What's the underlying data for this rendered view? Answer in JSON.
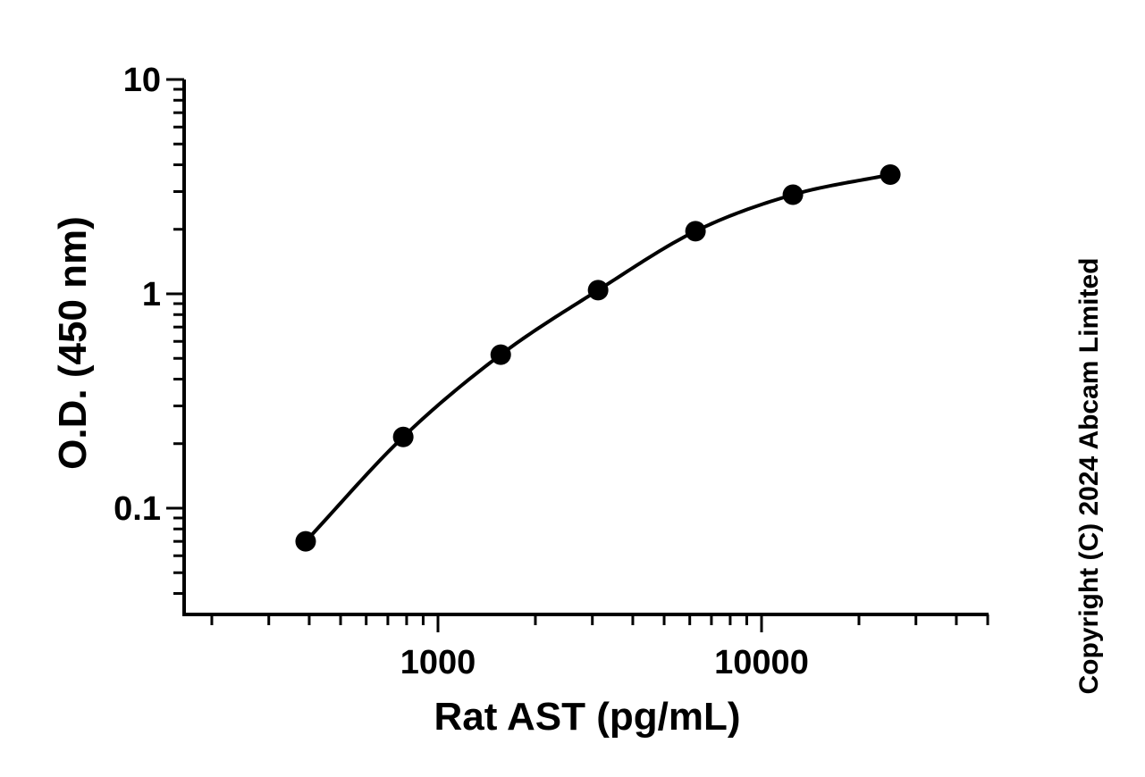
{
  "chart_data": {
    "type": "scatter",
    "title": "",
    "xlabel": "Rat AST (pg/mL)",
    "ylabel": "O.D. (450 nm)",
    "xscale": "log",
    "yscale": "log",
    "xlim": [
      150,
      55000
    ],
    "ylim": [
      0.032,
      10
    ],
    "grid": false,
    "legend": "none",
    "x_ticks": [
      {
        "value": 1000,
        "label": "1000"
      },
      {
        "value": 10000,
        "label": "10000"
      }
    ],
    "y_ticks": [
      {
        "value": 10,
        "label": "10"
      },
      {
        "value": 1,
        "label": "1"
      },
      {
        "value": 0.1,
        "label": "0.1"
      }
    ],
    "series": [
      {
        "color": "#000000",
        "marker": "circle",
        "fit_line": true,
        "points": [
          {
            "x": 390,
            "y": 0.07
          },
          {
            "x": 781,
            "y": 0.215
          },
          {
            "x": 1563,
            "y": 0.52
          },
          {
            "x": 3125,
            "y": 1.04
          },
          {
            "x": 6250,
            "y": 1.96
          },
          {
            "x": 12500,
            "y": 2.9
          },
          {
            "x": 25000,
            "y": 3.6
          }
        ]
      }
    ],
    "annotations": [
      "Copyright (C) 2024 Abcam Limited"
    ]
  }
}
